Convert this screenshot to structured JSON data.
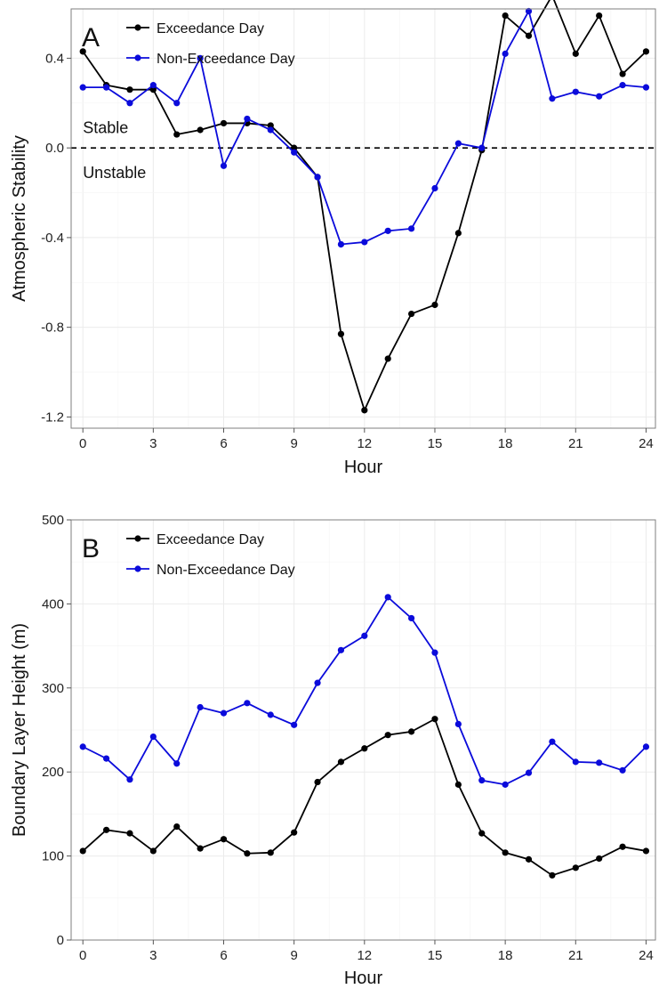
{
  "chart_data": [
    {
      "type": "line",
      "panel_label": "A",
      "xlabel": "Hour",
      "ylabel": "Atmospheric Stability",
      "xlim": [
        -0.5,
        24.4
      ],
      "ylim": [
        -1.25,
        0.62
      ],
      "xticks": [
        0,
        3,
        6,
        9,
        12,
        15,
        18,
        21,
        24
      ],
      "yticks": [
        -1.2,
        -0.8,
        -0.4,
        0.0,
        0.4
      ],
      "ytick_labels": [
        "-1.2",
        "-0.8",
        "-0.4",
        "0.0",
        "0.4"
      ],
      "grid": true,
      "legend_position": "top-left",
      "reference_line": {
        "y": 0,
        "style": "dashed"
      },
      "annotations": [
        {
          "text": "Stable",
          "x": 0,
          "y": 0.09
        },
        {
          "text": "Unstable",
          "x": 0,
          "y": -0.11
        }
      ],
      "x": [
        0,
        1,
        2,
        3,
        4,
        5,
        6,
        7,
        8,
        9,
        10,
        11,
        12,
        13,
        14,
        15,
        16,
        17,
        18,
        19,
        20,
        21,
        22,
        23,
        24
      ],
      "series": [
        {
          "name": "Exceedance Day",
          "color": "#000000",
          "values": [
            0.43,
            0.28,
            0.26,
            0.26,
            0.06,
            0.08,
            0.11,
            0.11,
            0.1,
            0.0,
            -0.13,
            -0.83,
            -1.17,
            -0.94,
            -0.74,
            -0.7,
            -0.38,
            -0.01,
            0.59,
            0.5,
            0.68,
            0.42,
            0.59,
            0.33,
            0.43
          ]
        },
        {
          "name": "Non-Exceedance Day",
          "color": "#0b0bdb",
          "values": [
            0.27,
            0.27,
            0.2,
            0.28,
            0.2,
            0.4,
            -0.08,
            0.13,
            0.08,
            -0.02,
            -0.13,
            -0.43,
            -0.42,
            -0.37,
            -0.36,
            -0.18,
            0.02,
            0.0,
            0.42,
            0.61,
            0.22,
            0.25,
            0.23,
            0.28,
            0.27
          ]
        }
      ]
    },
    {
      "type": "line",
      "panel_label": "B",
      "xlabel": "Hour",
      "ylabel": "Boundary Layer Height (m)",
      "xlim": [
        -0.5,
        24.4
      ],
      "ylim": [
        0,
        500
      ],
      "xticks": [
        0,
        3,
        6,
        9,
        12,
        15,
        18,
        21,
        24
      ],
      "yticks": [
        0,
        100,
        200,
        300,
        400,
        500
      ],
      "ytick_labels": [
        "0",
        "100",
        "200",
        "300",
        "400",
        "500"
      ],
      "grid": true,
      "legend_position": "top-left",
      "x": [
        0,
        1,
        2,
        3,
        4,
        5,
        6,
        7,
        8,
        9,
        10,
        11,
        12,
        13,
        14,
        15,
        16,
        17,
        18,
        19,
        20,
        21,
        22,
        23,
        24
      ],
      "series": [
        {
          "name": "Exceedance Day",
          "color": "#000000",
          "values": [
            106,
            131,
            127,
            106,
            135,
            109,
            120,
            103,
            104,
            128,
            188,
            212,
            228,
            244,
            248,
            263,
            185,
            127,
            104,
            96,
            77,
            86,
            97,
            111,
            106
          ]
        },
        {
          "name": "Non-Exceedance Day",
          "color": "#0b0bdb",
          "values": [
            230,
            216,
            191,
            242,
            210,
            277,
            270,
            282,
            268,
            256,
            306,
            345,
            362,
            408,
            383,
            342,
            257,
            190,
            185,
            199,
            236,
            212,
            211,
            202,
            230
          ]
        }
      ]
    }
  ]
}
